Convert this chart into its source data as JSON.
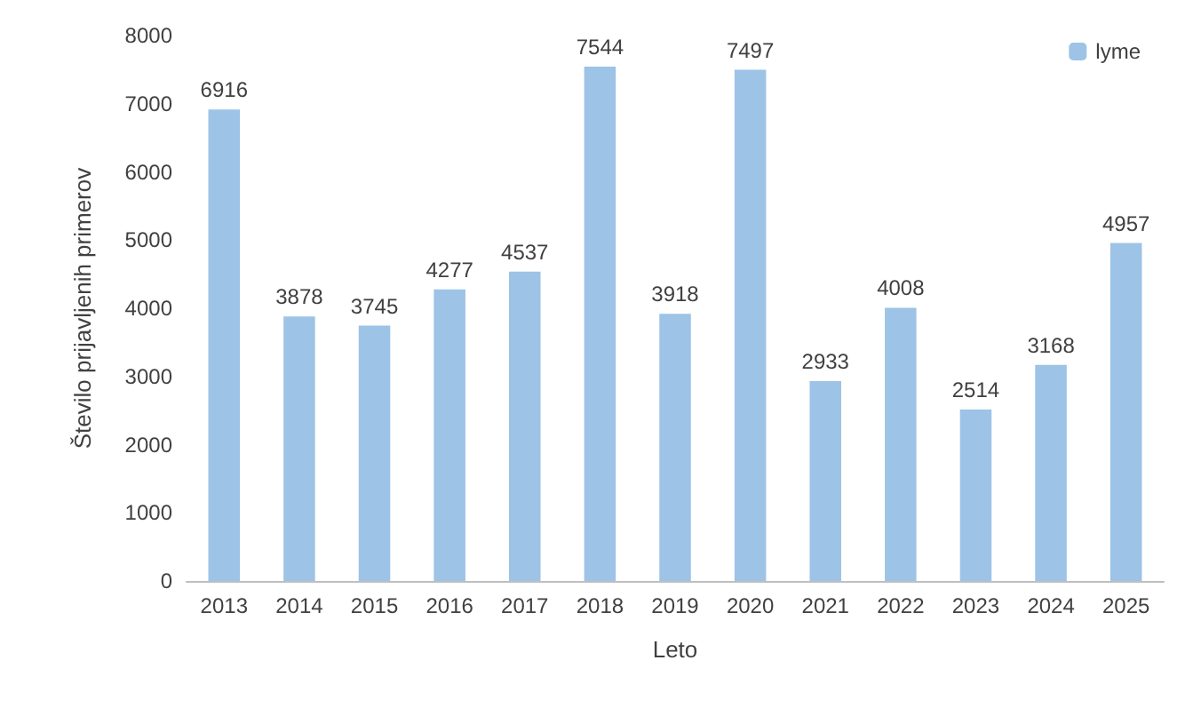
{
  "chart_data": {
    "type": "bar",
    "xlabel": "Leto",
    "ylabel": "Število prijavljenih primerov",
    "categories": [
      "2013",
      "2014",
      "2015",
      "2016",
      "2017",
      "2018",
      "2019",
      "2020",
      "2021",
      "2022",
      "2023",
      "2024",
      "2025"
    ],
    "series": [
      {
        "name": "lyme",
        "color": "#9dc3e6",
        "values": [
          6916,
          3878,
          3745,
          4277,
          4537,
          7544,
          3918,
          7497,
          2933,
          4008,
          2514,
          3168,
          4957
        ]
      }
    ],
    "ylim": [
      0,
      8000
    ],
    "yticks": [
      0,
      1000,
      2000,
      3000,
      4000,
      5000,
      6000,
      7000,
      8000
    ],
    "grid": false,
    "legend": "top right",
    "data_labels": true
  }
}
